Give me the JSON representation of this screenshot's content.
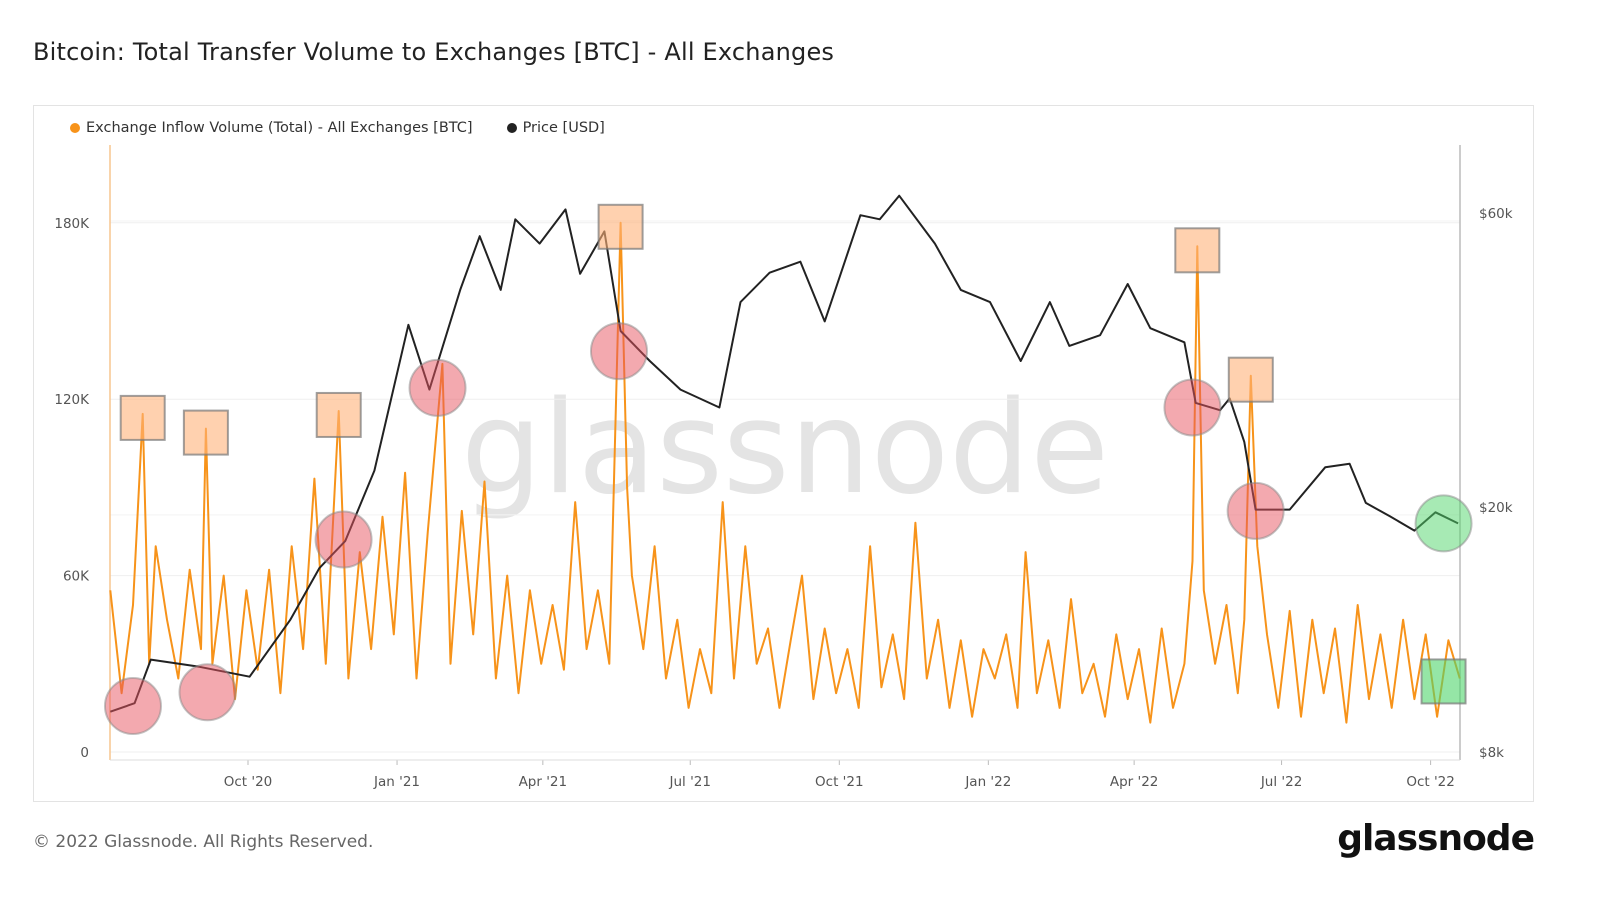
{
  "title": "Bitcoin: Total Transfer Volume to Exchanges [BTC] - All Exchanges",
  "footer": "© 2022 Glassnode. All Rights Reserved.",
  "logo": "glassnode",
  "watermark": "glassnode",
  "colors": {
    "inflow": "#f7931a",
    "price": "#222222",
    "highlight_red": "#e8545f",
    "highlight_orange": "#ffb27a",
    "highlight_green": "#4fd66a"
  },
  "chart_data": {
    "type": "line",
    "legend": [
      {
        "name": "Exchange Inflow Volume (Total) - All Exchanges [BTC]",
        "color": "#f7931a"
      },
      {
        "name": "Price [USD]",
        "color": "#222222"
      }
    ],
    "legend_position": "top-left",
    "grid": true,
    "x_ticks": [
      {
        "date": "2020-10-01",
        "label": "Oct '20"
      },
      {
        "date": "2021-01-01",
        "label": "Jan '21"
      },
      {
        "date": "2021-04-01",
        "label": "Apr '21"
      },
      {
        "date": "2021-07-01",
        "label": "Jul '21"
      },
      {
        "date": "2021-10-01",
        "label": "Oct '21"
      },
      {
        "date": "2022-01-01",
        "label": "Jan '22"
      },
      {
        "date": "2022-04-01",
        "label": "Apr '22"
      },
      {
        "date": "2022-07-01",
        "label": "Jul '22"
      },
      {
        "date": "2022-10-01",
        "label": "Oct '22"
      }
    ],
    "xlim": [
      "2020-07-08",
      "2022-10-20"
    ],
    "y_left": {
      "scale": "linear",
      "ylim": [
        0,
        210000
      ],
      "ticks": [
        {
          "v": 0,
          "label": "0"
        },
        {
          "v": 60000,
          "label": "60K"
        },
        {
          "v": 120000,
          "label": "120K"
        },
        {
          "v": 180000,
          "label": "180K"
        }
      ]
    },
    "y_right": {
      "scale": "log",
      "ylim": [
        8000,
        75000
      ],
      "ticks": [
        {
          "v": 8000,
          "label": "$8k"
        },
        {
          "v": 20000,
          "label": "$20k"
        },
        {
          "v": 60000,
          "label": "$60k"
        }
      ]
    },
    "series": [
      {
        "name": "Exchange Inflow Volume (Total) - All Exchanges [BTC]",
        "axis": "left",
        "points": [
          [
            "2020-07-08",
            55000
          ],
          [
            "2020-07-15",
            20000
          ],
          [
            "2020-07-22",
            50000
          ],
          [
            "2020-07-28",
            115000
          ],
          [
            "2020-08-01",
            30000
          ],
          [
            "2020-08-05",
            70000
          ],
          [
            "2020-08-12",
            45000
          ],
          [
            "2020-08-19",
            25000
          ],
          [
            "2020-08-26",
            62000
          ],
          [
            "2020-09-02",
            35000
          ],
          [
            "2020-09-05",
            110000
          ],
          [
            "2020-09-09",
            30000
          ],
          [
            "2020-09-16",
            60000
          ],
          [
            "2020-09-23",
            18000
          ],
          [
            "2020-09-30",
            55000
          ],
          [
            "2020-10-07",
            28000
          ],
          [
            "2020-10-14",
            62000
          ],
          [
            "2020-10-21",
            20000
          ],
          [
            "2020-10-28",
            70000
          ],
          [
            "2020-11-04",
            35000
          ],
          [
            "2020-11-11",
            93000
          ],
          [
            "2020-11-18",
            30000
          ],
          [
            "2020-11-26",
            116000
          ],
          [
            "2020-12-02",
            25000
          ],
          [
            "2020-12-09",
            68000
          ],
          [
            "2020-12-16",
            35000
          ],
          [
            "2020-12-23",
            80000
          ],
          [
            "2020-12-30",
            40000
          ],
          [
            "2021-01-06",
            95000
          ],
          [
            "2021-01-13",
            25000
          ],
          [
            "2021-01-20",
            75000
          ],
          [
            "2021-01-29",
            132000
          ],
          [
            "2021-02-03",
            30000
          ],
          [
            "2021-02-10",
            82000
          ],
          [
            "2021-02-17",
            40000
          ],
          [
            "2021-02-24",
            92000
          ],
          [
            "2021-03-03",
            25000
          ],
          [
            "2021-03-10",
            60000
          ],
          [
            "2021-03-17",
            20000
          ],
          [
            "2021-03-24",
            55000
          ],
          [
            "2021-03-31",
            30000
          ],
          [
            "2021-04-07",
            50000
          ],
          [
            "2021-04-14",
            28000
          ],
          [
            "2021-04-21",
            85000
          ],
          [
            "2021-04-28",
            35000
          ],
          [
            "2021-05-05",
            55000
          ],
          [
            "2021-05-12",
            30000
          ],
          [
            "2021-05-19",
            180000
          ],
          [
            "2021-05-23",
            90000
          ],
          [
            "2021-05-26",
            60000
          ],
          [
            "2021-06-02",
            35000
          ],
          [
            "2021-06-09",
            70000
          ],
          [
            "2021-06-16",
            25000
          ],
          [
            "2021-06-23",
            45000
          ],
          [
            "2021-06-30",
            15000
          ],
          [
            "2021-07-07",
            35000
          ],
          [
            "2021-07-14",
            20000
          ],
          [
            "2021-07-21",
            85000
          ],
          [
            "2021-07-28",
            25000
          ],
          [
            "2021-08-04",
            70000
          ],
          [
            "2021-08-11",
            30000
          ],
          [
            "2021-08-18",
            42000
          ],
          [
            "2021-08-25",
            15000
          ],
          [
            "2021-09-01",
            38000
          ],
          [
            "2021-09-08",
            60000
          ],
          [
            "2021-09-15",
            18000
          ],
          [
            "2021-09-22",
            42000
          ],
          [
            "2021-09-29",
            20000
          ],
          [
            "2021-10-06",
            35000
          ],
          [
            "2021-10-13",
            15000
          ],
          [
            "2021-10-20",
            70000
          ],
          [
            "2021-10-27",
            22000
          ],
          [
            "2021-11-03",
            40000
          ],
          [
            "2021-11-10",
            18000
          ],
          [
            "2021-11-17",
            78000
          ],
          [
            "2021-11-24",
            25000
          ],
          [
            "2021-12-01",
            45000
          ],
          [
            "2021-12-08",
            15000
          ],
          [
            "2021-12-15",
            38000
          ],
          [
            "2021-12-22",
            12000
          ],
          [
            "2021-12-29",
            35000
          ],
          [
            "2022-01-05",
            25000
          ],
          [
            "2022-01-12",
            40000
          ],
          [
            "2022-01-19",
            15000
          ],
          [
            "2022-01-24",
            68000
          ],
          [
            "2022-01-31",
            20000
          ],
          [
            "2022-02-07",
            38000
          ],
          [
            "2022-02-14",
            15000
          ],
          [
            "2022-02-21",
            52000
          ],
          [
            "2022-02-28",
            20000
          ],
          [
            "2022-03-07",
            30000
          ],
          [
            "2022-03-14",
            12000
          ],
          [
            "2022-03-21",
            40000
          ],
          [
            "2022-03-28",
            18000
          ],
          [
            "2022-04-04",
            35000
          ],
          [
            "2022-04-11",
            10000
          ],
          [
            "2022-04-18",
            42000
          ],
          [
            "2022-04-25",
            15000
          ],
          [
            "2022-05-02",
            30000
          ],
          [
            "2022-05-07",
            65000
          ],
          [
            "2022-05-10",
            172000
          ],
          [
            "2022-05-14",
            55000
          ],
          [
            "2022-05-21",
            30000
          ],
          [
            "2022-05-28",
            50000
          ],
          [
            "2022-06-04",
            20000
          ],
          [
            "2022-06-08",
            45000
          ],
          [
            "2022-06-12",
            128000
          ],
          [
            "2022-06-16",
            70000
          ],
          [
            "2022-06-22",
            40000
          ],
          [
            "2022-06-29",
            15000
          ],
          [
            "2022-07-06",
            48000
          ],
          [
            "2022-07-13",
            12000
          ],
          [
            "2022-07-20",
            45000
          ],
          [
            "2022-07-27",
            20000
          ],
          [
            "2022-08-03",
            42000
          ],
          [
            "2022-08-10",
            10000
          ],
          [
            "2022-08-17",
            50000
          ],
          [
            "2022-08-24",
            18000
          ],
          [
            "2022-08-31",
            40000
          ],
          [
            "2022-09-07",
            15000
          ],
          [
            "2022-09-14",
            45000
          ],
          [
            "2022-09-21",
            18000
          ],
          [
            "2022-09-28",
            40000
          ],
          [
            "2022-10-05",
            12000
          ],
          [
            "2022-10-12",
            38000
          ],
          [
            "2022-10-19",
            25000
          ]
        ]
      },
      {
        "name": "Price [USD]",
        "axis": "right",
        "points": [
          [
            "2020-07-08",
            9300
          ],
          [
            "2020-07-23",
            9600
          ],
          [
            "2020-08-02",
            11300
          ],
          [
            "2020-09-01",
            11000
          ],
          [
            "2020-10-02",
            10600
          ],
          [
            "2020-10-27",
            13100
          ],
          [
            "2020-11-14",
            15900
          ],
          [
            "2020-11-30",
            17600
          ],
          [
            "2020-12-18",
            22900
          ],
          [
            "2021-01-08",
            39500
          ],
          [
            "2021-01-21",
            31000
          ],
          [
            "2021-02-09",
            45000
          ],
          [
            "2021-02-21",
            55000
          ],
          [
            "2021-03-06",
            45000
          ],
          [
            "2021-03-15",
            58600
          ],
          [
            "2021-03-30",
            53500
          ],
          [
            "2021-04-15",
            60800
          ],
          [
            "2021-04-24",
            47800
          ],
          [
            "2021-05-09",
            56000
          ],
          [
            "2021-05-19",
            38600
          ],
          [
            "2021-06-06",
            34500
          ],
          [
            "2021-06-25",
            31000
          ],
          [
            "2021-07-19",
            29000
          ],
          [
            "2021-08-01",
            43000
          ],
          [
            "2021-08-19",
            48000
          ],
          [
            "2021-09-07",
            50000
          ],
          [
            "2021-09-22",
            40000
          ],
          [
            "2021-10-14",
            59500
          ],
          [
            "2021-10-26",
            58600
          ],
          [
            "2021-11-07",
            64000
          ],
          [
            "2021-11-29",
            53500
          ],
          [
            "2021-12-15",
            45000
          ],
          [
            "2022-01-02",
            43000
          ],
          [
            "2022-01-21",
            34500
          ],
          [
            "2022-02-08",
            43000
          ],
          [
            "2022-02-20",
            36500
          ],
          [
            "2022-03-11",
            38000
          ],
          [
            "2022-03-28",
            46000
          ],
          [
            "2022-04-11",
            39000
          ],
          [
            "2022-05-02",
            37000
          ],
          [
            "2022-05-09",
            29500
          ],
          [
            "2022-05-24",
            28700
          ],
          [
            "2022-05-30",
            30000
          ],
          [
            "2022-06-08",
            25500
          ],
          [
            "2022-06-15",
            19800
          ],
          [
            "2022-07-06",
            19800
          ],
          [
            "2022-07-28",
            23200
          ],
          [
            "2022-08-12",
            23500
          ],
          [
            "2022-08-22",
            20300
          ],
          [
            "2022-09-06",
            19300
          ],
          [
            "2022-09-21",
            18300
          ],
          [
            "2022-10-04",
            19600
          ],
          [
            "2022-10-18",
            18800
          ]
        ]
      }
    ],
    "annotations": {
      "price_circles": [
        {
          "date": "2020-07-22",
          "price": 9500,
          "color": "red"
        },
        {
          "date": "2020-09-06",
          "price": 10000,
          "color": "red"
        },
        {
          "date": "2020-11-29",
          "price": 17700,
          "color": "red"
        },
        {
          "date": "2021-01-26",
          "price": 31200,
          "color": "red"
        },
        {
          "date": "2021-05-18",
          "price": 35800,
          "color": "red"
        },
        {
          "date": "2022-05-07",
          "price": 29000,
          "color": "red"
        },
        {
          "date": "2022-06-15",
          "price": 19700,
          "color": "red"
        },
        {
          "date": "2022-10-09",
          "price": 18800,
          "color": "green"
        }
      ],
      "inflow_boxes": [
        {
          "date": "2020-07-28",
          "value": 115000,
          "color": "orange"
        },
        {
          "date": "2020-09-05",
          "value": 110000,
          "color": "orange"
        },
        {
          "date": "2020-11-26",
          "value": 116000,
          "color": "orange"
        },
        {
          "date": "2021-05-19",
          "value": 180000,
          "color": "orange"
        },
        {
          "date": "2022-05-10",
          "value": 172000,
          "color": "orange"
        },
        {
          "date": "2022-06-12",
          "value": 128000,
          "color": "orange"
        },
        {
          "date": "2022-10-09",
          "value": 24000,
          "color": "green"
        }
      ]
    }
  }
}
